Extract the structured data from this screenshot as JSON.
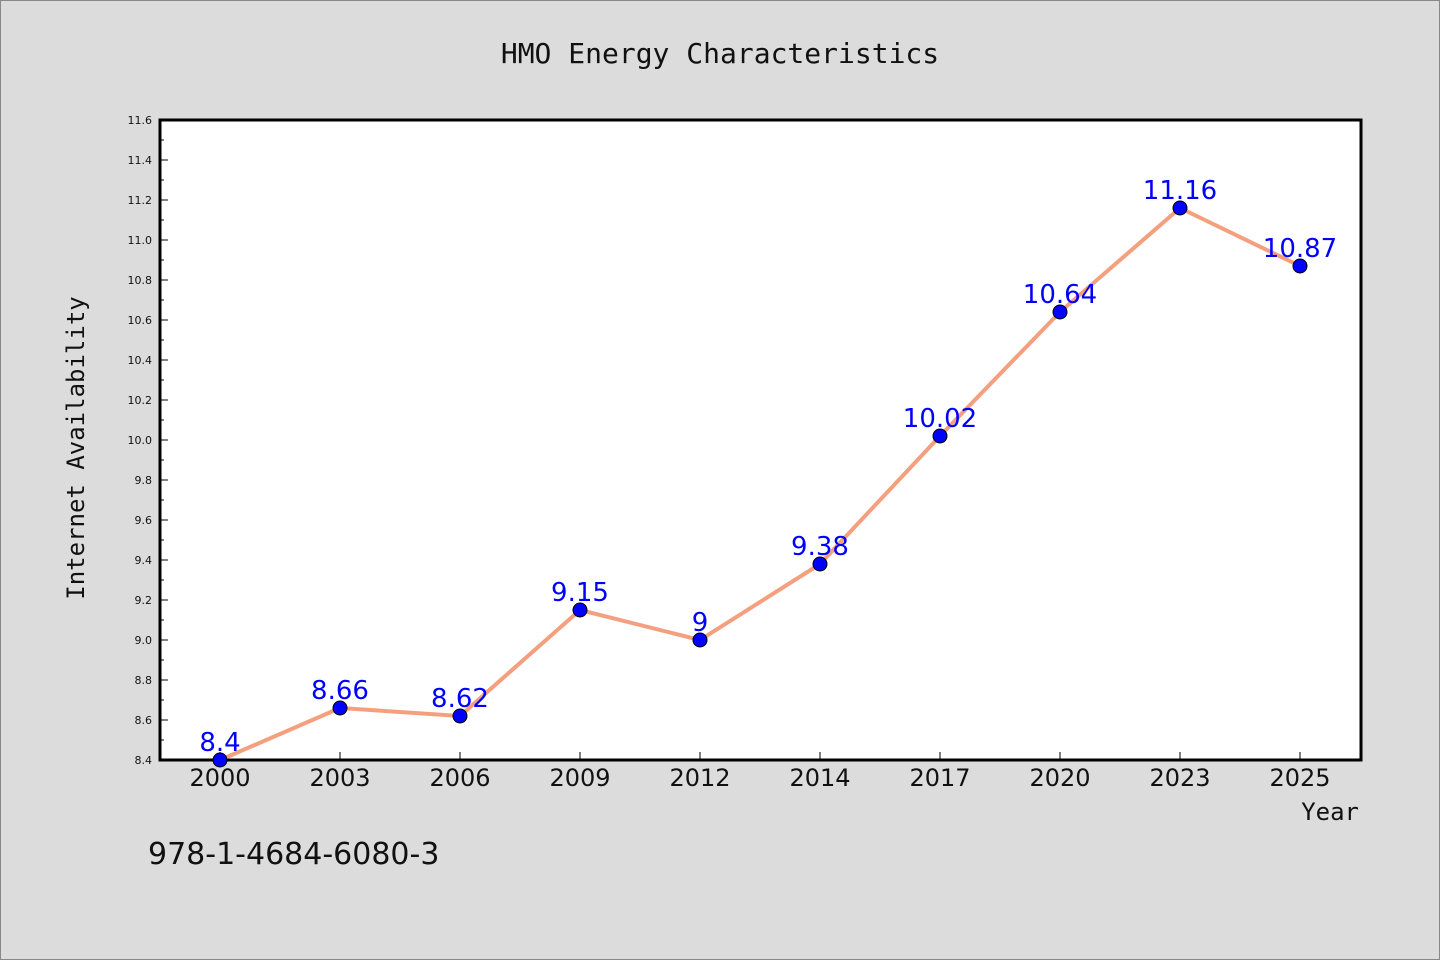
{
  "chart_data": {
    "type": "line",
    "title": "HMO Energy Characteristics",
    "xlabel": "Year",
    "ylabel": "Internet Availability",
    "categories": [
      "2000",
      "2003",
      "2006",
      "2009",
      "2012",
      "2014",
      "2017",
      "2020",
      "2023",
      "2025"
    ],
    "series": [
      {
        "values": [
          8.4,
          8.66,
          8.62,
          9.15,
          9.0,
          9.38,
          10.02,
          10.64,
          11.16,
          10.87
        ],
        "labels": [
          "8.4",
          "8.66",
          "8.62",
          "9.15",
          "9",
          "9.38",
          "10.02",
          "10.64",
          "11.16",
          "10.87"
        ]
      }
    ],
    "ylim": [
      8.4,
      11.6
    ],
    "yticks": [
      "8.4",
      "8.6",
      "8.8",
      "9.0",
      "9.2",
      "9.4",
      "9.6",
      "9.8",
      "10.0",
      "10.2",
      "10.4",
      "10.6",
      "10.8",
      "11.0",
      "11.2",
      "11.4",
      "11.6"
    ],
    "grid": false,
    "legend": "none",
    "colors": {
      "line": "#f4a07f",
      "marker": "#0000ff",
      "label": "#0000ff",
      "background": "#dcdcdc",
      "plot_background": "#ffffff"
    }
  },
  "annotation": "978-1-4684-6080-3"
}
